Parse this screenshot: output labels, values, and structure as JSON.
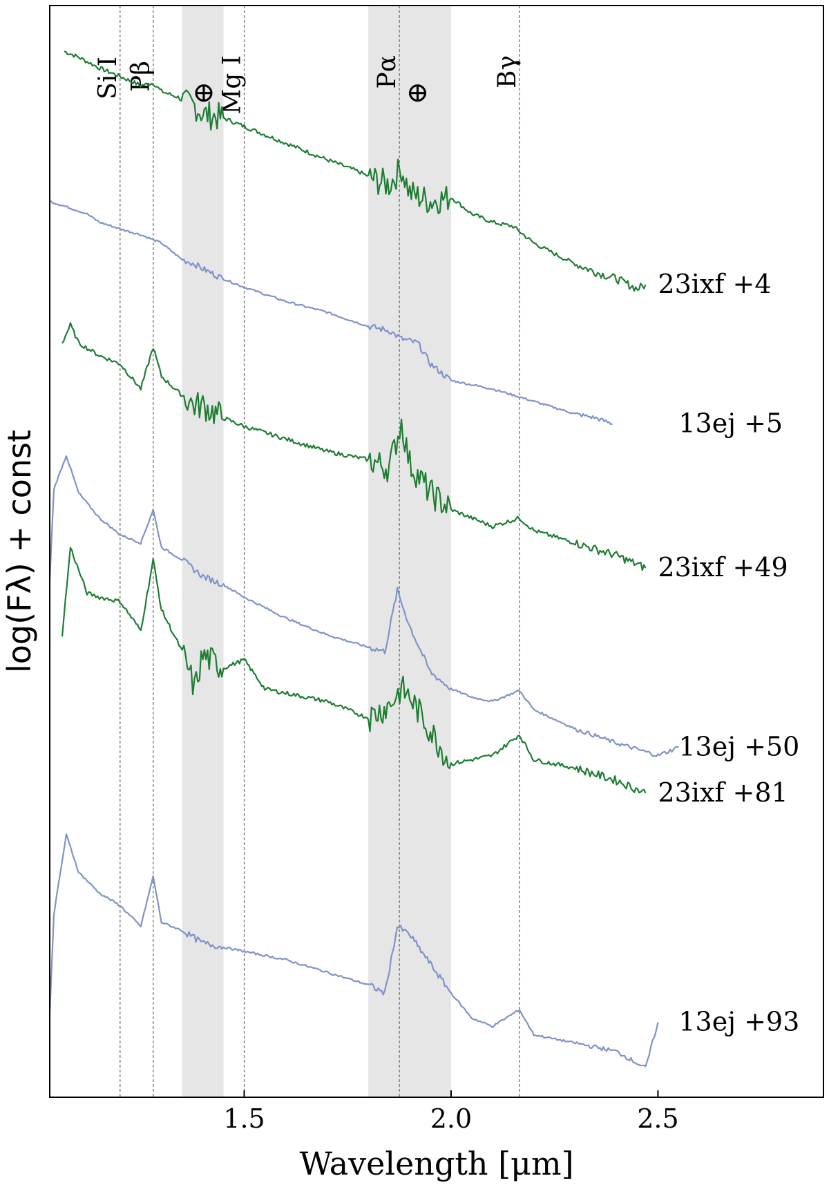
{
  "chart_data": {
    "type": "line",
    "xlabel": "Wavelength [μm]",
    "ylabel": "log(Fλ) + const",
    "xlim": [
      1.03,
      2.9
    ],
    "x_ticks": [
      1.5,
      2.0,
      2.5
    ],
    "x_tick_labels": [
      "1.5",
      "2.0",
      "2.5"
    ],
    "y_ticks_visible": false,
    "grid": false,
    "legend": "none; each spectrum labelled at its right end",
    "colors": {
      "green": "#1e7d32",
      "blue": "#7f93c8",
      "band": "#e6e6e6",
      "line_marker": "#666666"
    },
    "telluric_bands": [
      {
        "from": 1.35,
        "to": 1.45,
        "label": "⊕"
      },
      {
        "from": 1.8,
        "to": 2.0,
        "label": "⊕"
      }
    ],
    "line_markers": [
      {
        "x": 1.2,
        "label": "Si I"
      },
      {
        "x": 1.28,
        "label": "Pβ"
      },
      {
        "x": 1.5,
        "label": "Mg I"
      },
      {
        "x": 1.875,
        "label": "Pα"
      },
      {
        "x": 2.165,
        "label": "Bγ"
      }
    ],
    "series": [
      {
        "name": "23ixf +4",
        "color": "green",
        "x": [
          1.065,
          1.1,
          1.15,
          1.2,
          1.25,
          1.28,
          1.3,
          1.34,
          1.36,
          1.38,
          1.4,
          1.45,
          1.5,
          1.6,
          1.7,
          1.78,
          1.82,
          1.85,
          1.88,
          1.9,
          1.95,
          2.0,
          2.05,
          2.1,
          2.15,
          2.2,
          2.25,
          2.3,
          2.35,
          2.4,
          2.45,
          2.47
        ],
        "y": [
          7.35,
          7.28,
          7.15,
          7.05,
          6.94,
          6.97,
          6.87,
          6.8,
          6.72,
          6.7,
          6.6,
          6.55,
          6.45,
          6.25,
          6.05,
          5.9,
          5.8,
          5.75,
          5.95,
          5.65,
          5.55,
          5.6,
          5.4,
          5.3,
          5.25,
          5.05,
          4.92,
          4.8,
          4.7,
          4.62,
          4.5,
          4.55
        ],
        "label_x": 2.5
      },
      {
        "name": "13ej +5",
        "color": "blue",
        "x": [
          1.03,
          1.08,
          1.12,
          1.15,
          1.2,
          1.25,
          1.3,
          1.35,
          1.38,
          1.4,
          1.45,
          1.5,
          1.6,
          1.7,
          1.8,
          1.85,
          1.88,
          1.92,
          1.95,
          2.0,
          2.1,
          2.2,
          2.3,
          2.35,
          2.39
        ],
        "y": [
          5.55,
          5.47,
          5.4,
          5.3,
          5.22,
          5.15,
          5.05,
          4.85,
          4.8,
          4.74,
          4.62,
          4.52,
          4.35,
          4.22,
          4.05,
          4.0,
          3.9,
          3.85,
          3.6,
          3.4,
          3.3,
          3.15,
          3.0,
          2.95,
          2.88
        ],
        "label_x": 2.55
      },
      {
        "name": "23ixf +49",
        "color": "green",
        "x": [
          1.06,
          1.08,
          1.1,
          1.15,
          1.2,
          1.25,
          1.28,
          1.3,
          1.35,
          1.38,
          1.4,
          1.45,
          1.5,
          1.6,
          1.7,
          1.8,
          1.85,
          1.88,
          1.9,
          1.95,
          2.0,
          2.1,
          2.165,
          2.2,
          2.3,
          2.4,
          2.47
        ],
        "y": [
          3.85,
          4.07,
          3.85,
          3.7,
          3.6,
          3.3,
          3.8,
          3.45,
          3.22,
          3.1,
          3.1,
          2.95,
          2.85,
          2.7,
          2.55,
          2.45,
          2.35,
          2.9,
          2.4,
          2.05,
          1.85,
          1.65,
          1.75,
          1.6,
          1.45,
          1.3,
          1.15
        ],
        "label_x": 2.5
      },
      {
        "name": "13ej +50",
        "color": "blue",
        "x": [
          1.03,
          1.04,
          1.07,
          1.1,
          1.15,
          1.2,
          1.25,
          1.28,
          1.3,
          1.35,
          1.4,
          1.45,
          1.5,
          1.6,
          1.7,
          1.8,
          1.84,
          1.87,
          1.9,
          1.95,
          2.0,
          2.05,
          2.1,
          2.165,
          2.2,
          2.3,
          2.4,
          2.5,
          2.55
        ],
        "y": [
          1.0,
          2.1,
          2.5,
          2.05,
          1.75,
          1.55,
          1.45,
          1.85,
          1.4,
          1.25,
          1.05,
          0.95,
          0.8,
          0.55,
          0.35,
          0.2,
          0.15,
          0.88,
          0.45,
          -0.1,
          -0.3,
          -0.4,
          -0.45,
          -0.32,
          -0.55,
          -0.78,
          -0.95,
          -1.1,
          -1.0
        ],
        "label_x": 2.55
      },
      {
        "name": "23ixf +81",
        "color": "green",
        "x": [
          1.06,
          1.08,
          1.12,
          1.15,
          1.2,
          1.25,
          1.28,
          1.3,
          1.35,
          1.38,
          1.4,
          1.45,
          1.5,
          1.55,
          1.6,
          1.7,
          1.8,
          1.85,
          1.88,
          1.9,
          1.95,
          2.0,
          2.1,
          2.165,
          2.2,
          2.3,
          2.4,
          2.47
        ],
        "y": [
          0.35,
          1.4,
          0.85,
          0.8,
          0.75,
          0.4,
          1.25,
          0.65,
          0.15,
          -0.3,
          0.1,
          -0.05,
          0.05,
          -0.3,
          -0.35,
          -0.45,
          -0.65,
          -0.5,
          -0.3,
          -0.4,
          -0.8,
          -1.2,
          -1.1,
          -0.85,
          -1.15,
          -1.25,
          -1.4,
          -1.55
        ],
        "label_x": 2.5
      },
      {
        "name": "13ej +93",
        "color": "blue",
        "x": [
          1.03,
          1.04,
          1.07,
          1.1,
          1.15,
          1.2,
          1.25,
          1.28,
          1.3,
          1.35,
          1.4,
          1.45,
          1.5,
          1.6,
          1.7,
          1.8,
          1.84,
          1.87,
          1.9,
          1.95,
          2.0,
          2.05,
          2.1,
          2.165,
          2.2,
          2.3,
          2.4,
          2.47,
          2.5
        ],
        "y": [
          -4.2,
          -3.0,
          -2.05,
          -2.5,
          -2.75,
          -2.9,
          -3.15,
          -2.55,
          -3.1,
          -3.2,
          -3.35,
          -3.4,
          -3.45,
          -3.55,
          -3.7,
          -3.85,
          -3.95,
          -3.15,
          -3.25,
          -3.6,
          -3.95,
          -4.25,
          -4.35,
          -4.15,
          -4.45,
          -4.55,
          -4.65,
          -4.85,
          -4.3
        ],
        "label_x": 2.55
      }
    ]
  }
}
